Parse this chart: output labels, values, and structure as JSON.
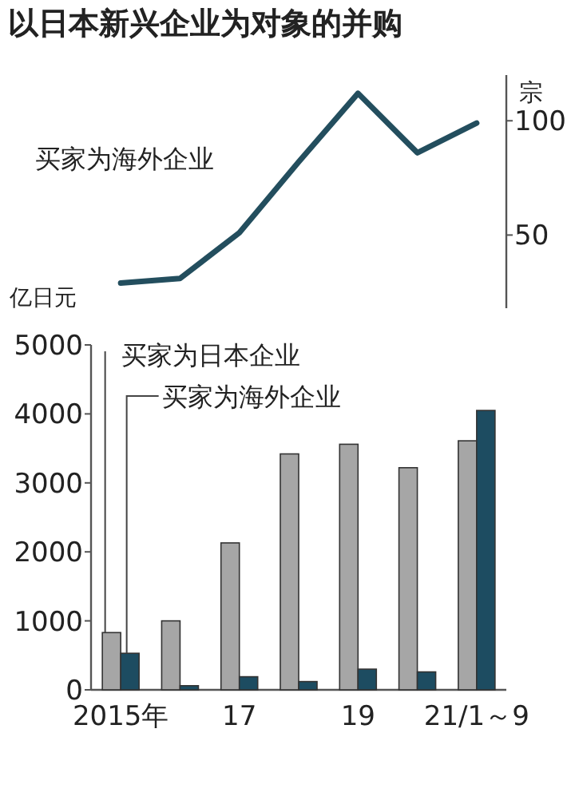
{
  "chart_data": [
    {
      "type": "line",
      "title": "以日本新兴企业为对象的并购",
      "categories": [
        null,
        null,
        null,
        null,
        null,
        null,
        null
      ],
      "ylabel": "宗",
      "ylim": [
        18,
        120
      ],
      "yticks": [
        50,
        100
      ],
      "series": [
        {
          "name": "买家为海外企业",
          "color": "#234e5e",
          "values": [
            29,
            31,
            51,
            82,
            112,
            86,
            99
          ]
        }
      ]
    },
    {
      "type": "bar",
      "categories": [
        "2015年",
        null,
        "17",
        null,
        "19",
        null,
        "21/1～9"
      ],
      "ylabel": "亿日元",
      "ylim": [
        0,
        5000
      ],
      "yticks": [
        0,
        1000,
        2000,
        3000,
        4000,
        5000
      ],
      "series": [
        {
          "name": "买家为日本企业",
          "color": "#a6a6a6",
          "values": [
            830,
            1000,
            2130,
            3420,
            3560,
            3220,
            3610
          ]
        },
        {
          "name": "买家为海外企业",
          "color": "#1d4c61",
          "values": [
            530,
            60,
            190,
            120,
            300,
            260,
            4050
          ]
        }
      ]
    }
  ]
}
